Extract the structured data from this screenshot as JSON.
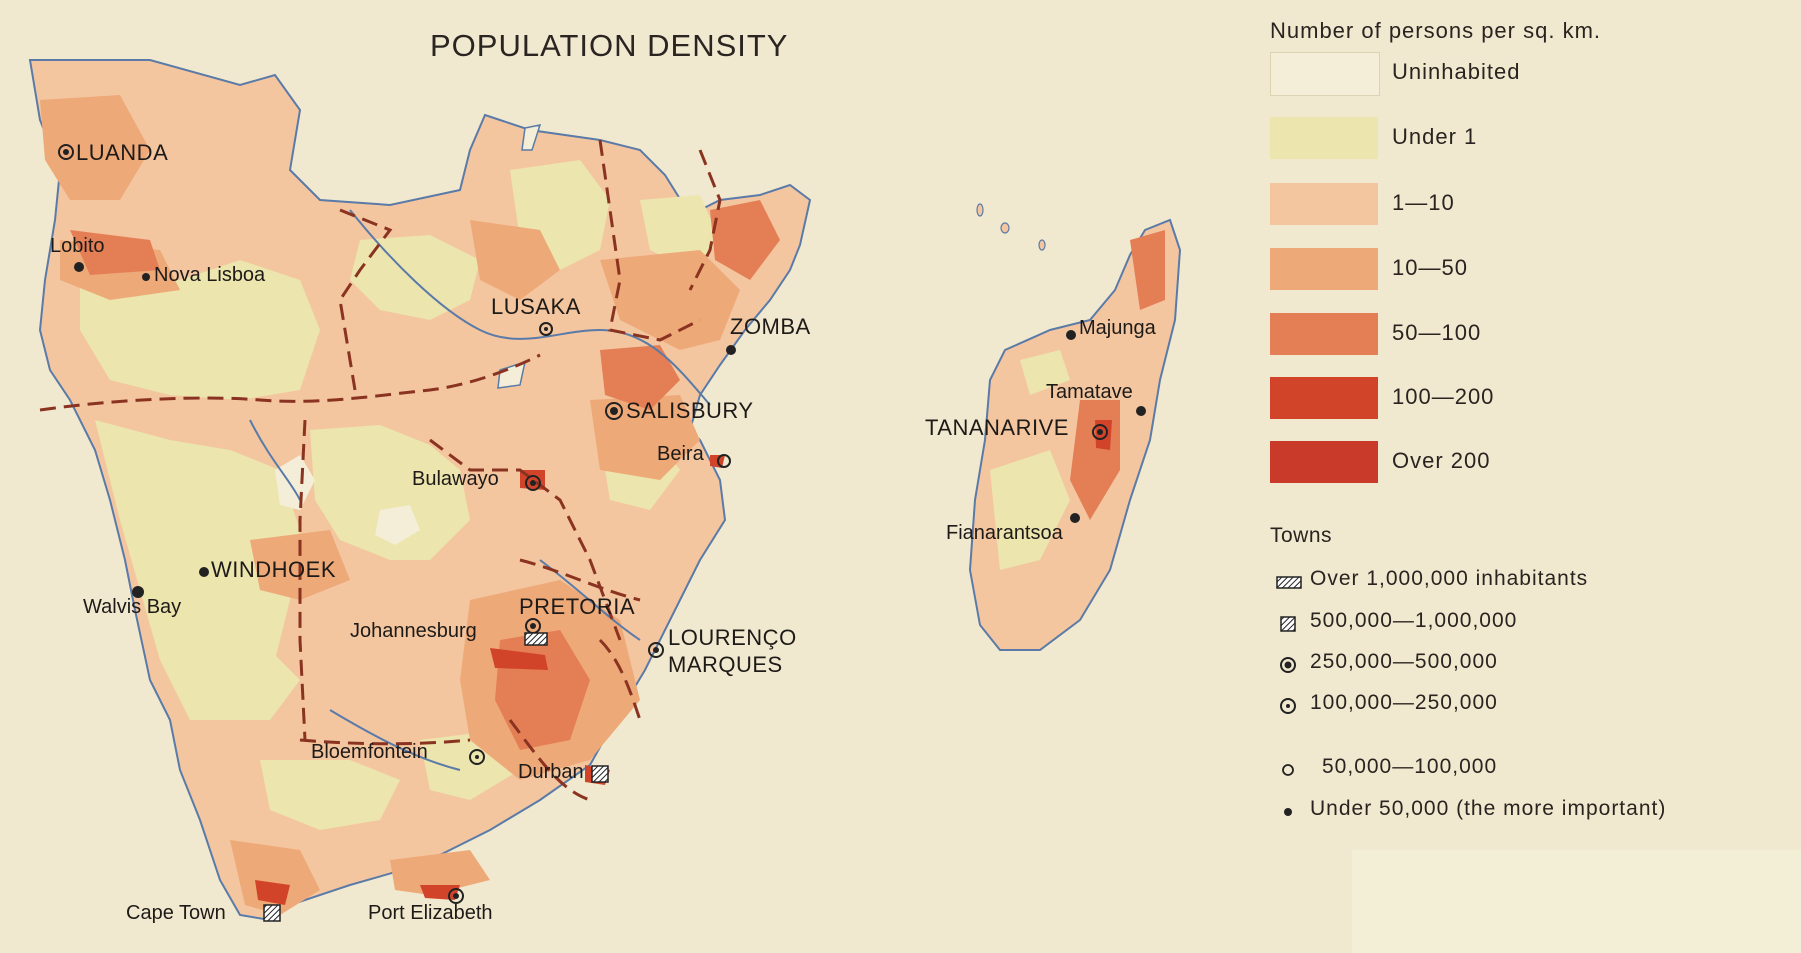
{
  "title": "POPULATION DENSITY",
  "colors": {
    "background": "#f1e9cf",
    "uninhabited": "#f4eed8",
    "under_1": "#ece5ae",
    "d1_10": "#f3c6a0",
    "d10_50": "#eea978",
    "d50_100": "#e47e55",
    "d100_200": "#d2442a",
    "over_200": "#c93a2a",
    "border": "#8a3320",
    "river": "#5a7aa8"
  },
  "legend": {
    "heading": "Number of persons per sq. km.",
    "classes": [
      {
        "label": "Uninhabited",
        "color": "#f4eed8"
      },
      {
        "label": "Under 1",
        "color": "#ece5ae"
      },
      {
        "label": "1—10",
        "color": "#f3c6a0"
      },
      {
        "label": "10—50",
        "color": "#eea978"
      },
      {
        "label": "50—100",
        "color": "#e47e55"
      },
      {
        "label": "100—200",
        "color": "#d2442a"
      },
      {
        "label": "Over 200",
        "color": "#c93a2a"
      }
    ],
    "towns_heading": "Towns",
    "towns": [
      {
        "label": "Over 1,000,000 inhabitants",
        "symbol": "hatched-rect-icon"
      },
      {
        "label": "500,000—1,000,000",
        "symbol": "hatched-square-icon"
      },
      {
        "label": "250,000—500,000",
        "symbol": "double-ring-icon"
      },
      {
        "label": "100,000—250,000",
        "symbol": "ring-dot-icon"
      },
      {
        "label": "50,000—100,000",
        "symbol": "small-ring-icon"
      },
      {
        "label": "Under 50,000 (the more important)",
        "symbol": "dot-icon"
      }
    ]
  },
  "cities": {
    "luanda": "LUANDA",
    "lobito": "Lobito",
    "nova_lisboa": "Nova Lisboa",
    "lusaka": "LUSAKA",
    "zomba": "ZOMBA",
    "salisbury": "SALISBURY",
    "beira": "Beira",
    "bulawayo": "Bulawayo",
    "windhoek": "WINDHOEK",
    "walvis_bay": "Walvis Bay",
    "pretoria": "PRETORIA",
    "johannesburg": "Johannesburg",
    "lourenco": "LOURENÇO",
    "marques": "MARQUES",
    "bloemfontein": "Bloemfontein",
    "durban": "Durban",
    "cape_town": "Cape Town",
    "port_elizabeth": "Port Elizabeth",
    "majunga": "Majunga",
    "tamatave": "Tamatave",
    "tananarive": "TANANARIVE",
    "fianarantsoa": "Fianarantsoa"
  }
}
